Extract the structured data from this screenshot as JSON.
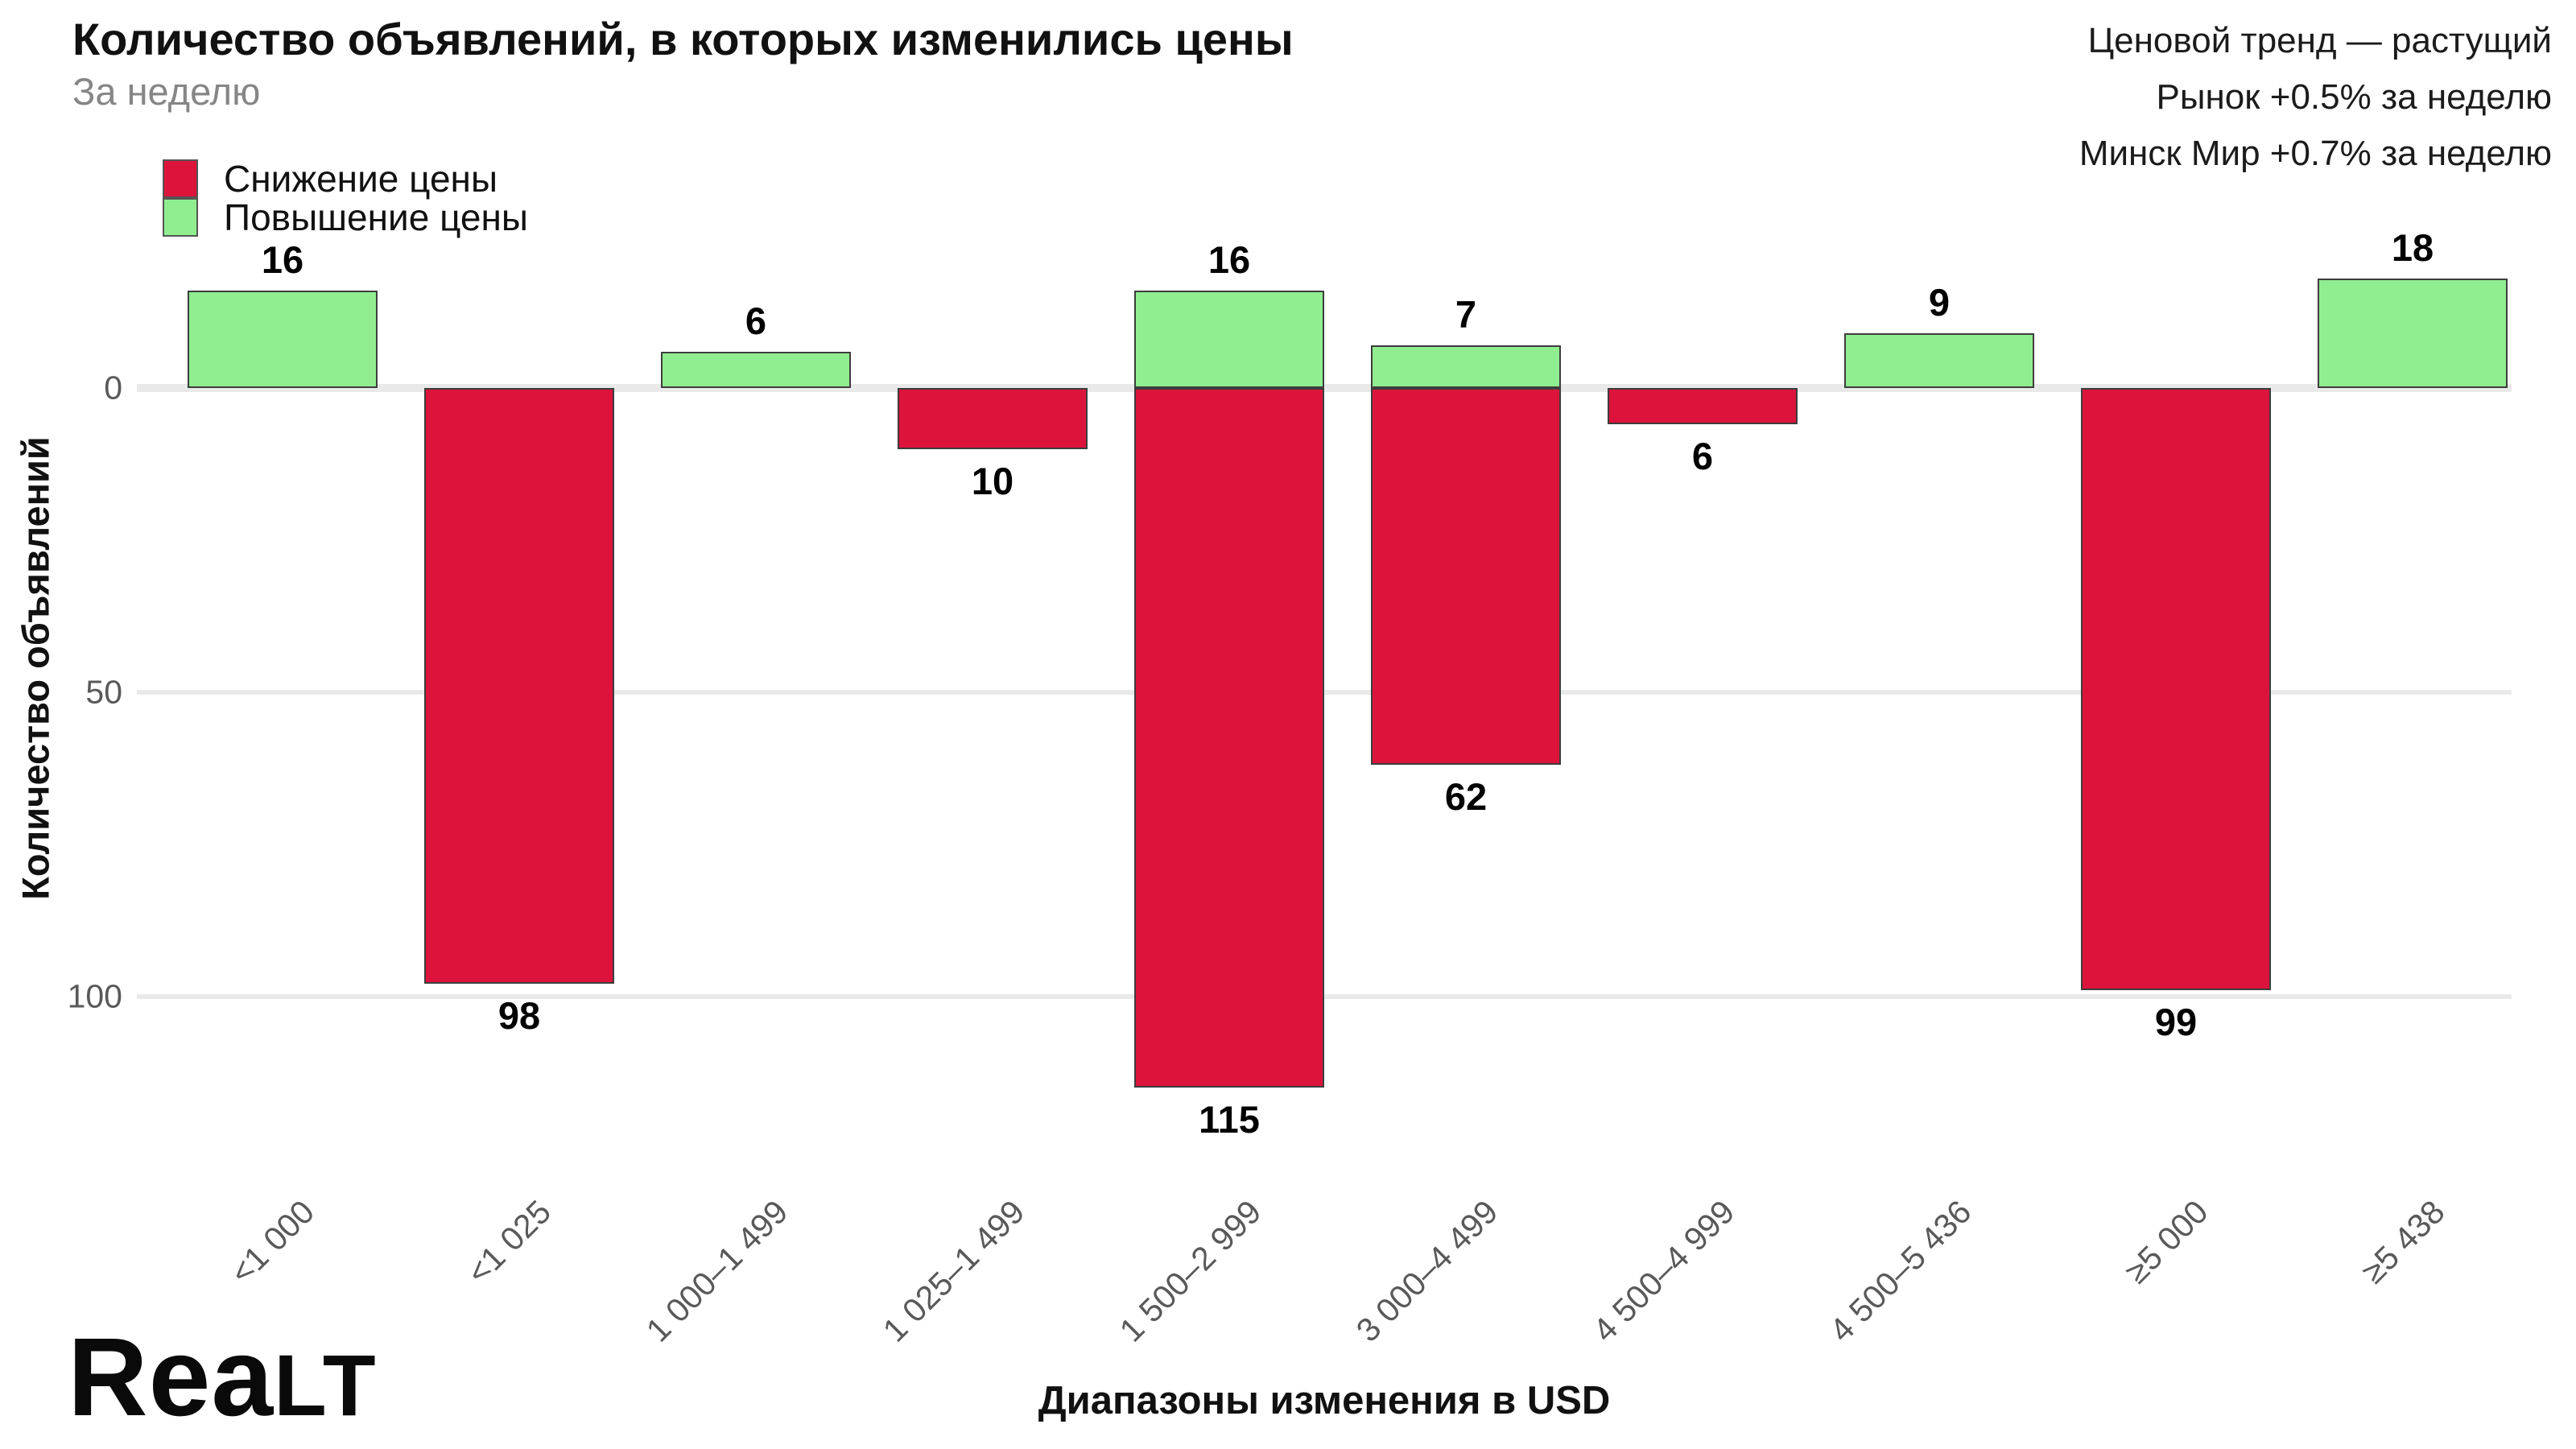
{
  "header": {
    "title": "Количество объявлений, в которых изменились цены",
    "subtitle": "За неделю",
    "trend": {
      "line1": "Ценовой тренд — растущий",
      "line2": "Рынок +0.5% за неделю",
      "line3": "Минск Мир +0.7% за неделю"
    }
  },
  "legend": {
    "items": [
      {
        "label": "Снижение цены",
        "color": "#dc143c"
      },
      {
        "label": "Повышение цены",
        "color": "#90ee90"
      }
    ]
  },
  "footer": {
    "logo_prefix": "Rea",
    "logo_suffix": "lt",
    "logo_full": "Realt"
  },
  "colors": {
    "background": "#ffffff",
    "increase": "#90ee90",
    "decrease": "#dc143c",
    "bar_border": "#3d3d3d",
    "gridline": "#e9e9e9",
    "axis_text": "#595959",
    "subtitle_text": "#868686"
  },
  "chart_data": {
    "type": "bar",
    "subtype": "diverging vertical bars: price increases drawn up, price decreases drawn down",
    "title": "Количество объявлений, в которых изменились цены",
    "subtitle": "За неделю",
    "xlabel": "Диапазоны изменения в USD",
    "ylabel": "Количество объявлений",
    "categories": [
      "<1 000",
      "<1 025",
      "1 000–1 499",
      "1 025–1 499",
      "1 500–2 999",
      "3 000–4 499",
      "4 500–4 999",
      "4 500–5 436",
      "≥5 000",
      "≥5 438"
    ],
    "series": [
      {
        "name": "Повышение цены",
        "direction": "up",
        "color": "#90ee90",
        "values": [
          16,
          null,
          6,
          null,
          16,
          7,
          null,
          9,
          null,
          18
        ]
      },
      {
        "name": "Снижение цены",
        "direction": "down",
        "color": "#dc143c",
        "values": [
          null,
          98,
          null,
          10,
          115,
          62,
          6,
          null,
          99,
          null
        ]
      }
    ],
    "yticks": [
      0,
      50,
      100
    ],
    "y_axis_note": "axis measures count downward from zero line; increases plotted above zero",
    "grid": "horizontal",
    "legend_position": "top-left",
    "annotations": "each bar labeled with its value in bold"
  }
}
